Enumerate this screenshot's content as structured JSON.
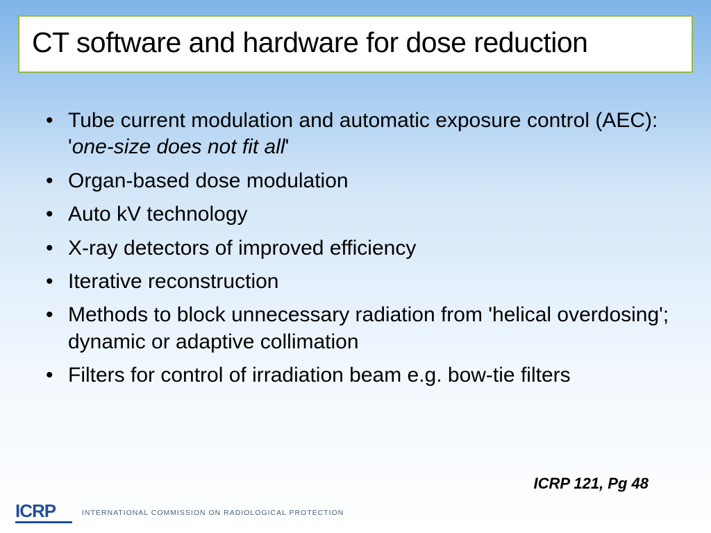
{
  "slide": {
    "title": "CT software and hardware for dose reduction",
    "bullets": [
      {
        "pre": "Tube current modulation and automatic exposure control (AEC): '",
        "em": "one-size does not fit all",
        "post": "'"
      },
      {
        "pre": "Organ-based dose modulation",
        "em": "",
        "post": ""
      },
      {
        "pre": "Auto kV technology",
        "em": "",
        "post": ""
      },
      {
        "pre": "X-ray detectors of improved efficiency",
        "em": "",
        "post": ""
      },
      {
        "pre": "Iterative reconstruction",
        "em": "",
        "post": ""
      },
      {
        "pre": "Methods to block unnecessary radiation from 'helical overdosing'; dynamic or adaptive collimation",
        "em": "",
        "post": ""
      },
      {
        "pre": "Filters for control of irradiation beam e.g. bow-tie filters",
        "em": "",
        "post": ""
      }
    ],
    "reference": "ICRP 121, Pg 48",
    "footer": {
      "logo_text": "ICRP",
      "org_name": "INTERNATIONAL COMMISSION ON RADIOLOGICAL PROTECTION"
    }
  },
  "style": {
    "background_gradient": [
      "#7fb4e8",
      "#d3e6f8",
      "#f2f8fe",
      "#ffffff"
    ],
    "title_border_color": "#96b84a",
    "title_bg": "#ffffff",
    "title_fontsize": 41,
    "body_fontsize": 30,
    "text_color": "#000000",
    "logo_color": "#1f4e9b",
    "org_color": "#4a5f7a",
    "ref_fontsize": 22
  }
}
